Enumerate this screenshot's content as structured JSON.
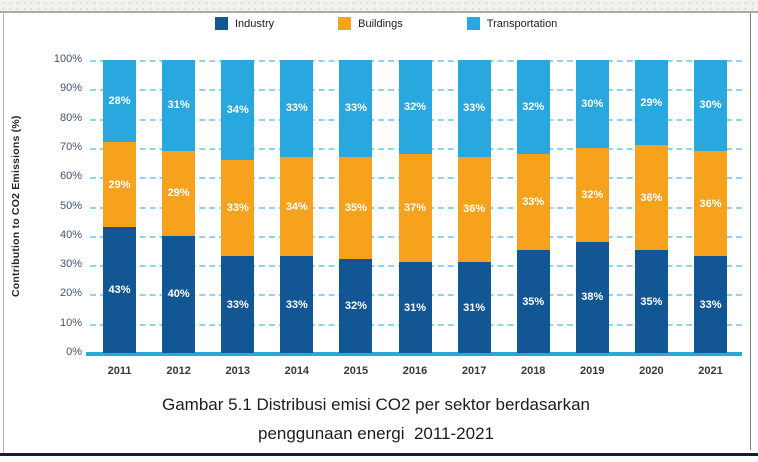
{
  "chart_data": {
    "type": "bar",
    "stacked": true,
    "percent_stacked": true,
    "categories": [
      "2011",
      "2012",
      "2013",
      "2014",
      "2015",
      "2016",
      "2017",
      "2018",
      "2019",
      "2020",
      "2021"
    ],
    "series": [
      {
        "name": "Industry",
        "color": "#135694",
        "values": [
          43,
          40,
          33,
          33,
          32,
          31,
          31,
          35,
          38,
          35,
          33
        ]
      },
      {
        "name": "Buildings",
        "color": "#f6a21d",
        "values": [
          29,
          29,
          33,
          34,
          35,
          37,
          36,
          33,
          32,
          36,
          36
        ]
      },
      {
        "name": "Transportation",
        "color": "#29a7df",
        "values": [
          28,
          31,
          34,
          33,
          33,
          32,
          33,
          32,
          30,
          29,
          30
        ]
      }
    ],
    "title": "",
    "xlabel": "",
    "ylabel": "Contribution to CO2 Emissions (%)",
    "ylim": [
      0,
      100
    ],
    "y_ticks": [
      "0%",
      "10%",
      "20%",
      "30%",
      "40%",
      "50%",
      "60%",
      "70%",
      "80%",
      "90%",
      "100%"
    ],
    "grid": "horizontal-dashed",
    "gridline_color": "#8fd2f2",
    "axis_line_color": "#29a7df",
    "tick_label_color": "#44546a",
    "value_label_format": "percent",
    "legend_position": "top"
  },
  "caption": {
    "line1": "Gambar 5.1 Distribusi emisi CO2 per sektor berdasarkan",
    "line2": "penggunaan energi  2011-2021"
  }
}
